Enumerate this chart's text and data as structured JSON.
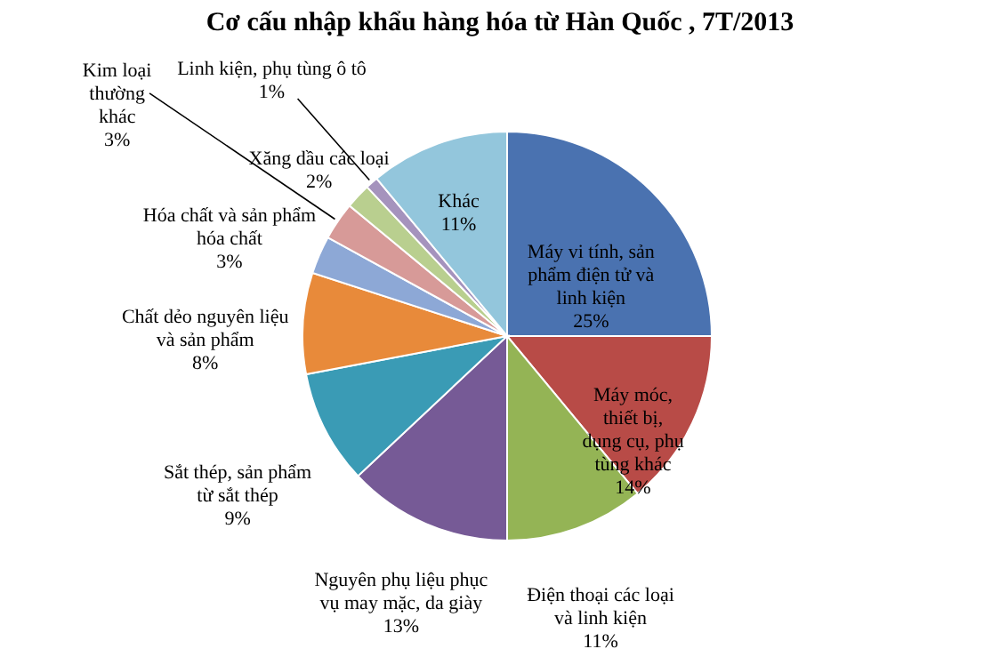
{
  "chart_data": {
    "type": "pie",
    "title": "Cơ cấu nhập khẩu hàng hóa từ Hàn Quốc , 7T/2013",
    "categories": [
      "Máy vi tính, sản phẩm điện tử và linh kiện",
      "Máy móc, thiết bị, dụng cụ, phụ tùng khác",
      "Điện thoại các loại và linh kiện",
      "Nguyên phụ liệu phục vụ may mặc, da giày",
      "Sắt thép, sản phẩm từ sắt thép",
      "Chất dẻo nguyên liệu và sản phẩm",
      "Hóa chất và sản phẩm hóa chất",
      "Kim loại thường khác",
      "Xăng dầu các loại",
      "Linh kiện, phụ tùng ô tô",
      "Khác"
    ],
    "values": [
      25,
      14,
      11,
      13,
      9,
      8,
      3,
      3,
      2,
      1,
      11
    ],
    "value_labels": [
      "25%",
      "14%",
      "11%",
      "13%",
      "9%",
      "8%",
      "3%",
      "3%",
      "2%",
      "1%",
      "11%"
    ],
    "colors": [
      "#4a72b0",
      "#b84b47",
      "#94b455",
      "#765a96",
      "#3a9bb5",
      "#e88a3a",
      "#8da8d6",
      "#d79a98",
      "#b9cf8f",
      "#a593bd",
      "#93c6dc"
    ]
  }
}
